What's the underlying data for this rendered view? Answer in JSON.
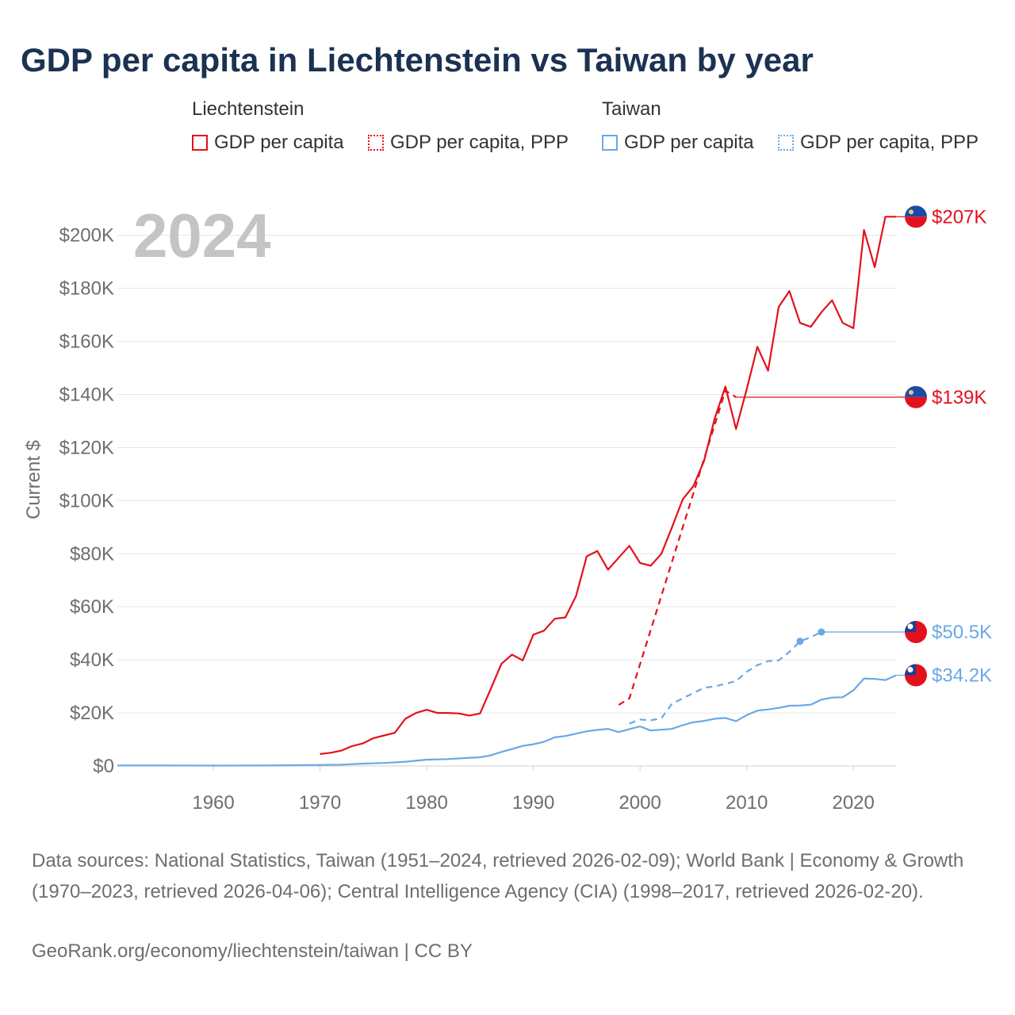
{
  "title": "GDP per capita in Liechtenstein vs Taiwan by year",
  "legend": {
    "groups": [
      {
        "name": "Liechtenstein",
        "items": [
          "GDP per capita",
          "GDP per capita, PPP"
        ]
      },
      {
        "name": "Taiwan",
        "items": [
          "GDP per capita",
          "GDP per capita, PPP"
        ]
      }
    ]
  },
  "footer": {
    "sources": "Data sources: National Statistics, Taiwan (1951–2024, retrieved 2026-02-09); World Bank | Economy & Growth (1970–2023, retrieved 2026-04-06); Central Intelligence Agency (CIA) (1998–2017, retrieved 2026-02-20).",
    "site": "GeoRank.org/economy/liechtenstein/taiwan | CC BY"
  },
  "chart_data": {
    "type": "line",
    "year_label": "2024",
    "ylabel": "Current $",
    "xlabel": "",
    "xlim": [
      1951,
      2024
    ],
    "ylim": [
      0,
      210000
    ],
    "x_ticks": [
      1960,
      1970,
      1980,
      1990,
      2000,
      2010,
      2020
    ],
    "y_ticks": [
      0,
      20000,
      40000,
      60000,
      80000,
      100000,
      120000,
      140000,
      160000,
      180000,
      200000
    ],
    "y_tick_labels": [
      "$0",
      "$20K",
      "$40K",
      "$60K",
      "$80K",
      "$100K",
      "$120K",
      "$140K",
      "$160K",
      "$180K",
      "$200K"
    ],
    "colors": {
      "liechtenstein": "#e4111c",
      "taiwan": "#6aa8e6"
    },
    "series": [
      {
        "name": "Liechtenstein GDP per capita",
        "country": "liechtenstein",
        "style": "solid",
        "end_label": "$207K",
        "end_value": 207000,
        "points": [
          [
            1970,
            4500
          ],
          [
            1971,
            5000
          ],
          [
            1972,
            5800
          ],
          [
            1973,
            7500
          ],
          [
            1974,
            8500
          ],
          [
            1975,
            10500
          ],
          [
            1976,
            11500
          ],
          [
            1977,
            12500
          ],
          [
            1978,
            17800
          ],
          [
            1979,
            20000
          ],
          [
            1980,
            21200
          ],
          [
            1981,
            20000
          ],
          [
            1982,
            20000
          ],
          [
            1983,
            19800
          ],
          [
            1984,
            19000
          ],
          [
            1985,
            19800
          ],
          [
            1986,
            29000
          ],
          [
            1987,
            38500
          ],
          [
            1988,
            42000
          ],
          [
            1989,
            39800
          ],
          [
            1990,
            49500
          ],
          [
            1991,
            51000
          ],
          [
            1992,
            55500
          ],
          [
            1993,
            56000
          ],
          [
            1994,
            64000
          ],
          [
            1995,
            79000
          ],
          [
            1996,
            81000
          ],
          [
            1997,
            74000
          ],
          [
            1998,
            78500
          ],
          [
            1999,
            83000
          ],
          [
            2000,
            76500
          ],
          [
            2001,
            75500
          ],
          [
            2002,
            80000
          ],
          [
            2003,
            90000
          ],
          [
            2004,
            100500
          ],
          [
            2005,
            105500
          ],
          [
            2006,
            115000
          ],
          [
            2007,
            131000
          ],
          [
            2008,
            143000
          ],
          [
            2009,
            127000
          ],
          [
            2010,
            142000
          ],
          [
            2011,
            158000
          ],
          [
            2012,
            149000
          ],
          [
            2013,
            173000
          ],
          [
            2014,
            179000
          ],
          [
            2015,
            167000
          ],
          [
            2016,
            165500
          ],
          [
            2017,
            171000
          ],
          [
            2018,
            175500
          ],
          [
            2019,
            167000
          ],
          [
            2020,
            165000
          ],
          [
            2021,
            202000
          ],
          [
            2022,
            188000
          ],
          [
            2023,
            207000
          ],
          [
            2024,
            207000
          ]
        ]
      },
      {
        "name": "Liechtenstein GDP per capita, PPP",
        "country": "liechtenstein",
        "style": "dashed",
        "end_label": "$139K",
        "end_value": 139000,
        "points": [
          [
            1998,
            23000
          ],
          [
            1999,
            25500
          ],
          [
            2008,
            141500
          ],
          [
            2009,
            139000
          ]
        ]
      },
      {
        "name": "Taiwan GDP per capita",
        "country": "taiwan",
        "style": "solid",
        "end_label": "$34.2K",
        "end_value": 34200,
        "points": [
          [
            1951,
            200
          ],
          [
            1955,
            200
          ],
          [
            1960,
            150
          ],
          [
            1965,
            200
          ],
          [
            1970,
            390
          ],
          [
            1972,
            500
          ],
          [
            1974,
            900
          ],
          [
            1976,
            1150
          ],
          [
            1978,
            1600
          ],
          [
            1980,
            2400
          ],
          [
            1982,
            2600
          ],
          [
            1984,
            3100
          ],
          [
            1985,
            3300
          ],
          [
            1986,
            4000
          ],
          [
            1987,
            5300
          ],
          [
            1988,
            6400
          ],
          [
            1989,
            7600
          ],
          [
            1990,
            8200
          ],
          [
            1991,
            9100
          ],
          [
            1992,
            10800
          ],
          [
            1993,
            11300
          ],
          [
            1994,
            12200
          ],
          [
            1995,
            13100
          ],
          [
            1996,
            13600
          ],
          [
            1997,
            14000
          ],
          [
            1998,
            12800
          ],
          [
            1999,
            13900
          ],
          [
            2000,
            14900
          ],
          [
            2001,
            13400
          ],
          [
            2002,
            13700
          ],
          [
            2003,
            14000
          ],
          [
            2004,
            15400
          ],
          [
            2005,
            16500
          ],
          [
            2006,
            17000
          ],
          [
            2007,
            17800
          ],
          [
            2008,
            18100
          ],
          [
            2009,
            16900
          ],
          [
            2010,
            19200
          ],
          [
            2011,
            20900
          ],
          [
            2012,
            21300
          ],
          [
            2013,
            21900
          ],
          [
            2014,
            22700
          ],
          [
            2015,
            22800
          ],
          [
            2016,
            23100
          ],
          [
            2017,
            25000
          ],
          [
            2018,
            25800
          ],
          [
            2019,
            25900
          ],
          [
            2020,
            28500
          ],
          [
            2021,
            33000
          ],
          [
            2022,
            32800
          ],
          [
            2023,
            32400
          ],
          [
            2024,
            34200
          ]
        ]
      },
      {
        "name": "Taiwan GDP per capita, PPP",
        "country": "taiwan",
        "style": "dashed",
        "end_label": "$50.5K",
        "end_value": 50500,
        "marked_points": [
          [
            2015,
            47000
          ],
          [
            2017,
            50500
          ]
        ],
        "points": [
          [
            1999,
            16000
          ],
          [
            2000,
            17500
          ],
          [
            2001,
            17200
          ],
          [
            2002,
            18000
          ],
          [
            2003,
            23500
          ],
          [
            2004,
            25500
          ],
          [
            2005,
            27500
          ],
          [
            2006,
            29500
          ],
          [
            2007,
            30000
          ],
          [
            2008,
            31000
          ],
          [
            2009,
            32000
          ],
          [
            2010,
            35500
          ],
          [
            2011,
            38000
          ],
          [
            2012,
            39500
          ],
          [
            2013,
            39800
          ],
          [
            2014,
            43000
          ],
          [
            2015,
            47000
          ],
          [
            2016,
            48500
          ],
          [
            2017,
            50500
          ]
        ]
      }
    ]
  }
}
